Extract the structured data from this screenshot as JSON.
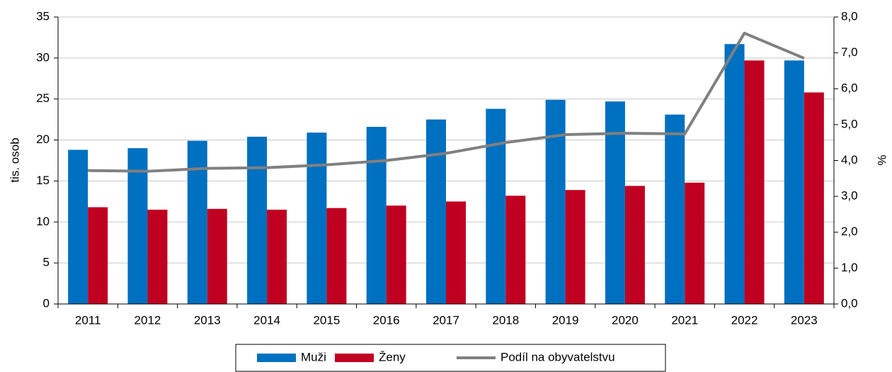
{
  "chart_data": {
    "type": "bar-line",
    "categories": [
      "2011",
      "2012",
      "2013",
      "2014",
      "2015",
      "2016",
      "2017",
      "2018",
      "2019",
      "2020",
      "2021",
      "2022",
      "2023"
    ],
    "series": [
      {
        "name": "Muži",
        "color": "#0070c0",
        "type": "bar",
        "values": [
          18.8,
          19.0,
          19.9,
          20.4,
          20.9,
          21.6,
          22.5,
          23.8,
          24.9,
          24.7,
          23.1,
          31.7,
          29.7
        ]
      },
      {
        "name": "Ženy",
        "color": "#c00021",
        "type": "bar",
        "values": [
          11.8,
          11.5,
          11.6,
          11.5,
          11.7,
          12.0,
          12.5,
          13.2,
          13.9,
          14.4,
          14.8,
          29.7,
          25.8
        ]
      },
      {
        "name": "Podíl na obyvatelstvu",
        "color": "#808080",
        "type": "line",
        "axis": "y2",
        "values": [
          3.72,
          3.7,
          3.78,
          3.8,
          3.88,
          4.0,
          4.2,
          4.5,
          4.72,
          4.76,
          4.74,
          7.55,
          6.85
        ]
      }
    ],
    "ylabel": "tis. osob",
    "y2label": "%",
    "ylim": [
      0,
      35
    ],
    "yticks": [
      0,
      5,
      10,
      15,
      20,
      25,
      30,
      35
    ],
    "y2lim": [
      0,
      8
    ],
    "y2ticks": [
      {
        "value": 0,
        "label": "0,0"
      },
      {
        "value": 1,
        "label": "1,0"
      },
      {
        "value": 2,
        "label": "2,0"
      },
      {
        "value": 3,
        "label": "3,0"
      },
      {
        "value": 4,
        "label": "4,0"
      },
      {
        "value": 5,
        "label": "5,0"
      },
      {
        "value": 6,
        "label": "6,0"
      },
      {
        "value": 7,
        "label": "7,0"
      },
      {
        "value": 8,
        "label": "8,0"
      }
    ],
    "grid": true,
    "legend": "bottom"
  }
}
